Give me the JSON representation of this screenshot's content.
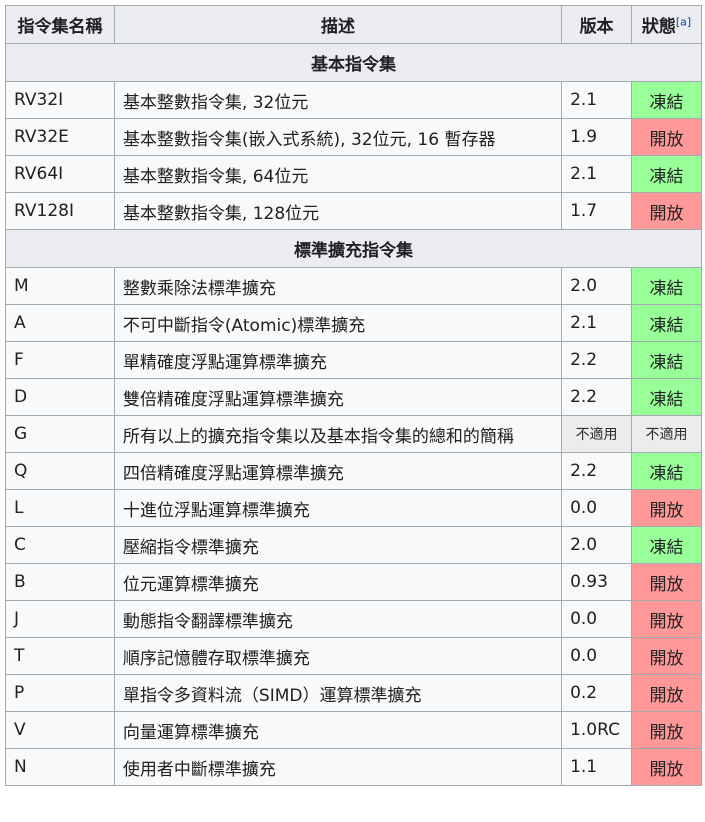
{
  "header": {
    "name": "指令集名稱",
    "description": "描述",
    "version": "版本",
    "status": "狀態",
    "status_ref": "[a]"
  },
  "sections": [
    {
      "title": "基本指令集",
      "rows": [
        {
          "name": "RV32I",
          "description": "基本整數指令集, 32位元",
          "version": "2.1",
          "status": "凍結",
          "status_type": "frozen"
        },
        {
          "name": "RV32E",
          "description": "基本整數指令集(嵌入式系統), 32位元, 16 暫存器",
          "version": "1.9",
          "status": "開放",
          "status_type": "open"
        },
        {
          "name": "RV64I",
          "description": "基本整數指令集, 64位元",
          "version": "2.1",
          "status": "凍結",
          "status_type": "frozen"
        },
        {
          "name": "RV128I",
          "description": "基本整數指令集, 128位元",
          "version": "1.7",
          "status": "開放",
          "status_type": "open"
        }
      ]
    },
    {
      "title": "標準擴充指令集",
      "rows": [
        {
          "name": "M",
          "description": "整數乘除法標準擴充",
          "version": "2.0",
          "status": "凍結",
          "status_type": "frozen"
        },
        {
          "name": "A",
          "description": "不可中斷指令(Atomic)標準擴充",
          "version": "2.1",
          "status": "凍結",
          "status_type": "frozen"
        },
        {
          "name": "F",
          "description": "單精確度浮點運算標準擴充",
          "version": "2.2",
          "status": "凍結",
          "status_type": "frozen"
        },
        {
          "name": "D",
          "description": "雙倍精確度浮點運算標準擴充",
          "version": "2.2",
          "status": "凍結",
          "status_type": "frozen"
        },
        {
          "name": "G",
          "description": "所有以上的擴充指令集以及基本指令集的總和的簡稱",
          "version": "不適用",
          "version_type": "na",
          "status": "不適用",
          "status_type": "na"
        },
        {
          "name": "Q",
          "description": "四倍精確度浮點運算標準擴充",
          "version": "2.2",
          "status": "凍結",
          "status_type": "frozen"
        },
        {
          "name": "L",
          "description": "十進位浮點運算標準擴充",
          "version": "0.0",
          "status": "開放",
          "status_type": "open"
        },
        {
          "name": "C",
          "description": "壓縮指令標準擴充",
          "version": "2.0",
          "status": "凍結",
          "status_type": "frozen"
        },
        {
          "name": "B",
          "description": "位元運算標準擴充",
          "version": "0.93",
          "status": "開放",
          "status_type": "open"
        },
        {
          "name": "J",
          "description": "動態指令翻譯標準擴充",
          "version": "0.0",
          "status": "開放",
          "status_type": "open"
        },
        {
          "name": "T",
          "description": "順序記憶體存取標準擴充",
          "version": "0.0",
          "status": "開放",
          "status_type": "open"
        },
        {
          "name": "P",
          "description": "單指令多資料流（SIMD）運算標準擴充",
          "version": "0.2",
          "status": "開放",
          "status_type": "open"
        },
        {
          "name": "V",
          "description": "向量運算標準擴充",
          "version": "1.0RC",
          "status": "開放",
          "status_type": "open"
        },
        {
          "name": "N",
          "description": "使用者中斷標準擴充",
          "version": "1.1",
          "status": "開放",
          "status_type": "open"
        }
      ]
    }
  ],
  "colors": {
    "frozen": "#99ff99",
    "open": "#ff9999",
    "na": "#ececec",
    "header_bg": "#eaecf0",
    "row_bg": "#f8f9fa",
    "border": "#a2a9b1"
  }
}
